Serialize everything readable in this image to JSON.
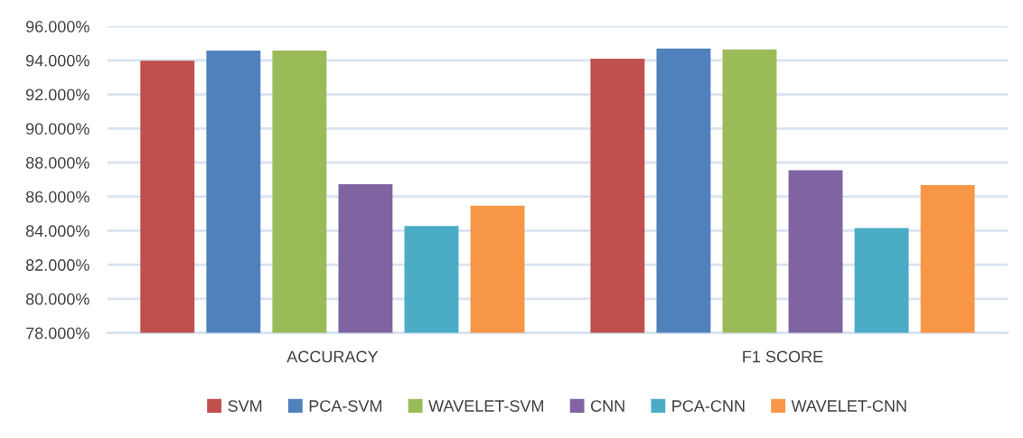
{
  "chart_data": {
    "type": "bar",
    "categories": [
      "ACCURACY",
      "F1 SCORE"
    ],
    "series": [
      {
        "name": "SVM",
        "color": "#c0504d",
        "values": [
          93.98,
          94.09
        ]
      },
      {
        "name": "PCA-SVM",
        "color": "#4f81bd",
        "values": [
          94.58,
          94.69
        ]
      },
      {
        "name": "WAVELET-SVM",
        "color": "#9bbb59",
        "values": [
          94.58,
          94.64
        ]
      },
      {
        "name": "CNN",
        "color": "#8064a2",
        "values": [
          86.73,
          87.55
        ]
      },
      {
        "name": "PCA-CNN",
        "color": "#4bacc6",
        "values": [
          84.27,
          84.16
        ]
      },
      {
        "name": "WAVELET-CNN",
        "color": "#f79646",
        "values": [
          85.47,
          86.67
        ]
      }
    ],
    "ylim": [
      78,
      96
    ],
    "yticks": [
      {
        "value": 78,
        "label": "78.000%"
      },
      {
        "value": 80,
        "label": "80.000%"
      },
      {
        "value": 82,
        "label": "82.000%"
      },
      {
        "value": 84,
        "label": "84.000%"
      },
      {
        "value": 86,
        "label": "86.000%"
      },
      {
        "value": 88,
        "label": "88.000%"
      },
      {
        "value": 90,
        "label": "90.000%"
      },
      {
        "value": 92,
        "label": "92.000%"
      },
      {
        "value": 94,
        "label": "94.000%"
      },
      {
        "value": 96,
        "label": "96.000%"
      }
    ],
    "grid": "y",
    "legend": "bottom"
  }
}
